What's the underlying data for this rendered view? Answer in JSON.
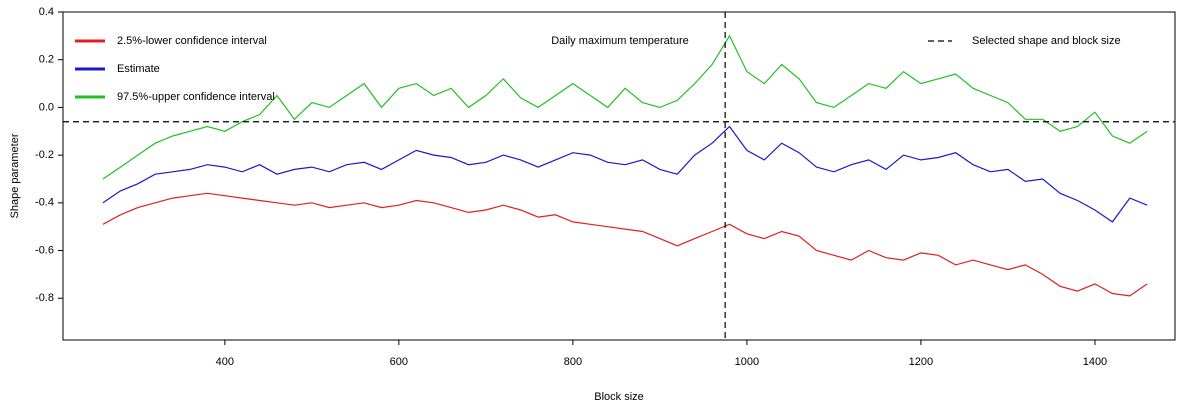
{
  "chart_data": {
    "type": "line",
    "annotation": "Daily maximum temperature",
    "x_label": "Block size",
    "y_label": "Shape parameter",
    "x": [
      260,
      280,
      300,
      320,
      340,
      360,
      380,
      400,
      420,
      440,
      460,
      480,
      500,
      520,
      540,
      560,
      580,
      600,
      620,
      640,
      660,
      680,
      700,
      720,
      740,
      760,
      780,
      800,
      820,
      840,
      860,
      880,
      900,
      920,
      940,
      960,
      980,
      1000,
      1020,
      1040,
      1060,
      1080,
      1100,
      1120,
      1140,
      1160,
      1180,
      1200,
      1220,
      1240,
      1260,
      1280,
      1300,
      1320,
      1340,
      1360,
      1380,
      1400,
      1420,
      1440,
      1460
    ],
    "series": [
      {
        "name": "2.5%-lower confidence interval",
        "color": "#e02020",
        "values": [
          -0.49,
          -0.45,
          -0.42,
          -0.4,
          -0.38,
          -0.37,
          -0.36,
          -0.37,
          -0.38,
          -0.39,
          -0.4,
          -0.41,
          -0.4,
          -0.42,
          -0.41,
          -0.4,
          -0.42,
          -0.41,
          -0.39,
          -0.4,
          -0.42,
          -0.44,
          -0.43,
          -0.41,
          -0.43,
          -0.46,
          -0.45,
          -0.48,
          -0.49,
          -0.5,
          -0.51,
          -0.52,
          -0.55,
          -0.58,
          -0.55,
          -0.52,
          -0.49,
          -0.53,
          -0.55,
          -0.52,
          -0.54,
          -0.6,
          -0.62,
          -0.64,
          -0.6,
          -0.63,
          -0.64,
          -0.61,
          -0.62,
          -0.66,
          -0.64,
          -0.66,
          -0.68,
          -0.66,
          -0.7,
          -0.75,
          -0.77,
          -0.74,
          -0.78,
          -0.79,
          -0.74
        ]
      },
      {
        "name": "Estimate",
        "color": "#1a1acc",
        "values": [
          -0.4,
          -0.35,
          -0.32,
          -0.28,
          -0.27,
          -0.26,
          -0.24,
          -0.25,
          -0.27,
          -0.24,
          -0.28,
          -0.26,
          -0.25,
          -0.27,
          -0.24,
          -0.23,
          -0.26,
          -0.22,
          -0.18,
          -0.2,
          -0.21,
          -0.24,
          -0.23,
          -0.2,
          -0.22,
          -0.25,
          -0.22,
          -0.19,
          -0.2,
          -0.23,
          -0.24,
          -0.22,
          -0.26,
          -0.28,
          -0.2,
          -0.15,
          -0.08,
          -0.18,
          -0.22,
          -0.15,
          -0.19,
          -0.25,
          -0.27,
          -0.24,
          -0.22,
          -0.26,
          -0.2,
          -0.22,
          -0.21,
          -0.19,
          -0.24,
          -0.27,
          -0.26,
          -0.31,
          -0.3,
          -0.36,
          -0.39,
          -0.43,
          -0.48,
          -0.38,
          -0.41
        ]
      },
      {
        "name": "97.5%-upper confidence interval",
        "color": "#22c022",
        "values": [
          -0.3,
          -0.25,
          -0.2,
          -0.15,
          -0.12,
          -0.1,
          -0.08,
          -0.1,
          -0.06,
          -0.03,
          0.05,
          -0.05,
          0.02,
          0.0,
          0.05,
          0.1,
          0.0,
          0.08,
          0.1,
          0.05,
          0.08,
          0.0,
          0.05,
          0.12,
          0.04,
          0.0,
          0.05,
          0.1,
          0.05,
          0.0,
          0.08,
          0.02,
          0.0,
          0.03,
          0.1,
          0.18,
          0.3,
          0.15,
          0.1,
          0.18,
          0.12,
          0.02,
          0.0,
          0.05,
          0.1,
          0.08,
          0.15,
          0.1,
          0.12,
          0.14,
          0.08,
          0.05,
          0.02,
          -0.05,
          -0.05,
          -0.1,
          -0.08,
          -0.02,
          -0.12,
          -0.15,
          -0.1
        ]
      }
    ],
    "reference": {
      "name": "Selected shape and block size",
      "x": 975,
      "y": -0.06,
      "color": "#000000"
    },
    "xlim": [
      214,
      1492
    ],
    "ylim": [
      -0.975,
      0.4
    ],
    "xticks": [
      400,
      600,
      800,
      1000,
      1200,
      1400
    ],
    "yticks": [
      -0.8,
      -0.6,
      -0.4,
      -0.2,
      {
        "value": 0,
        "label": "0.0"
      },
      0.2,
      0.4
    ]
  }
}
